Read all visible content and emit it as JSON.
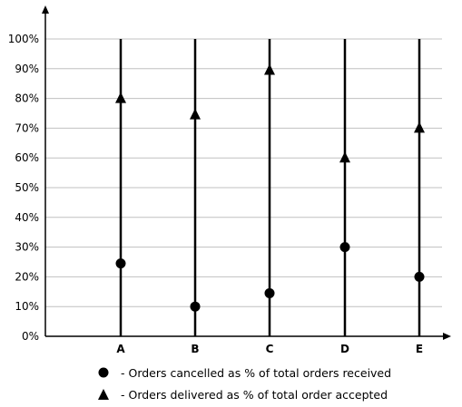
{
  "chart_data": {
    "type": "scatter",
    "categories": [
      "A",
      "B",
      "C",
      "D",
      "E"
    ],
    "ylim": [
      0,
      100
    ],
    "y_ticks": [
      "0%",
      "10%",
      "20%",
      "30%",
      "40%",
      "50%",
      "60%",
      "70%",
      "80%",
      "90%",
      "100%"
    ],
    "grid": true,
    "legend_position": "bottom",
    "series": [
      {
        "name": "- Orders cancelled as % of total orders received",
        "marker": "circle",
        "values": [
          24.5,
          10,
          14.5,
          30,
          20
        ]
      },
      {
        "name": "- Orders delivered as % of total order accepted",
        "marker": "triangle",
        "values": [
          80,
          74.5,
          89.5,
          60,
          70
        ]
      }
    ]
  },
  "colors": {
    "marker": "#000000",
    "grid": "#c0c0c0",
    "axis": "#000000"
  }
}
